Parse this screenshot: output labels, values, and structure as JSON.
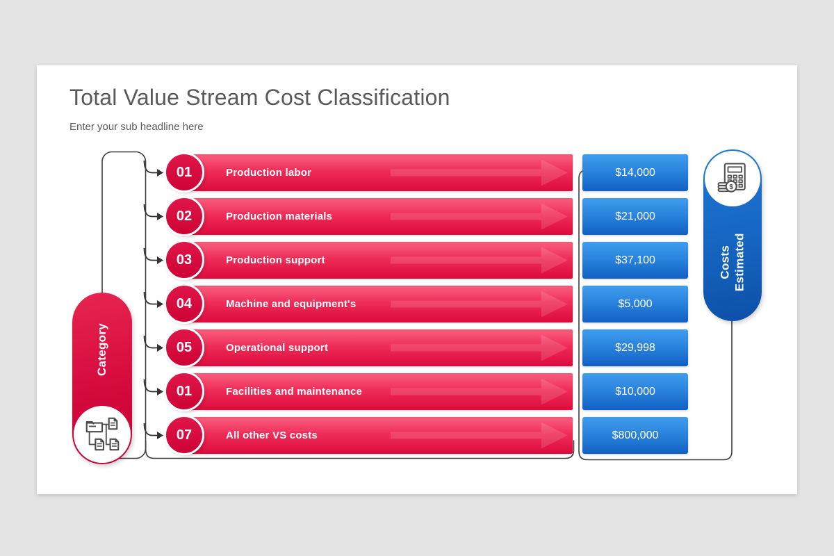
{
  "slide": {
    "title": "Total Value Stream Cost Classification",
    "subtitle": "Enter your sub headline here"
  },
  "category_pill": {
    "label": "Category",
    "icon": "folder-tree-icon"
  },
  "estimated_pill": {
    "label_line1": "Estimated",
    "label_line2": "Costs",
    "icon": "calculator-coins-icon"
  },
  "rows": [
    {
      "number": "01",
      "label": "Production labor",
      "cost": "$14,000"
    },
    {
      "number": "02",
      "label": "Production materials",
      "cost": "$21,000"
    },
    {
      "number": "03",
      "label": "Production support",
      "cost": "$37,100"
    },
    {
      "number": "04",
      "label": "Machine and equipment's",
      "cost": "$5,000"
    },
    {
      "number": "05",
      "label": "Operational support",
      "cost": "$29,998"
    },
    {
      "number": "01",
      "label": "Facilities and maintenance",
      "cost": "$10,000"
    },
    {
      "number": "07",
      "label": "All other VS costs",
      "cost": "$800,000"
    }
  ],
  "colors": {
    "accent_red": "#d50a3e",
    "red_light": "#f9607f",
    "red_dark": "#dc0a3d",
    "accent_blue": "#1565c0",
    "blue_light": "#3f9ded",
    "blue_dark": "#1160c4",
    "line_color": "#3d3d3d",
    "title_color": "#58595b",
    "page_bg": "#e4e4e4"
  }
}
